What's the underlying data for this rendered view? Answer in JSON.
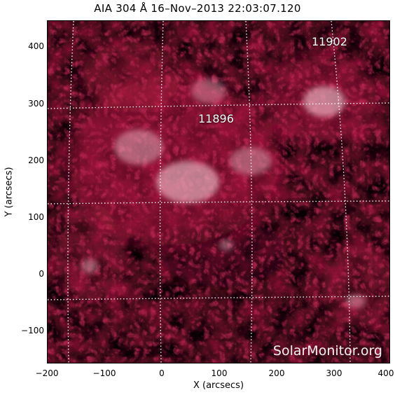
{
  "title": "AIA 304 Å 16–Nov–2013 22:03:07.120",
  "xlabel": "X (arcsecs)",
  "ylabel": "Y (arcsecs)",
  "x_ticks": [
    "−200",
    "−100",
    "0",
    "100",
    "200",
    "300",
    "400"
  ],
  "y_ticks": [
    "400",
    "300",
    "200",
    "100",
    "0",
    "−100"
  ],
  "regions": [
    "11902",
    "11896"
  ],
  "watermark": "SolarMonitor.org",
  "colors": {
    "sun_bright": "#f5c8d4",
    "sun_mid": "#b01840",
    "sun_dark": "#3a0514",
    "background": "#070103",
    "grid": "#ffffff"
  }
}
